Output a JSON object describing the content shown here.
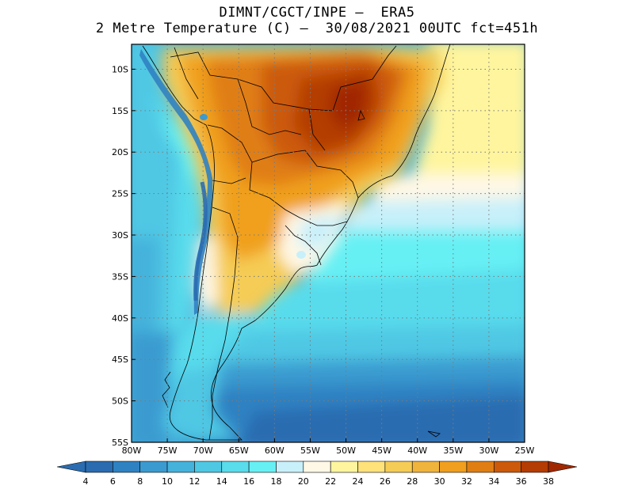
{
  "title": {
    "line1": "DIMNT/CGCT/INPE –  ERA5",
    "line2": "2 Metre Temperature (C) –  30/08/2021 00UTC fct=451h"
  },
  "map": {
    "lon_range": [
      -80,
      -25
    ],
    "lat_range": [
      -55,
      -7
    ],
    "lon_ticks": [
      {
        "value": -80,
        "label": "80W"
      },
      {
        "value": -75,
        "label": "75W"
      },
      {
        "value": -70,
        "label": "70W"
      },
      {
        "value": -65,
        "label": "65W"
      },
      {
        "value": -60,
        "label": "60W"
      },
      {
        "value": -55,
        "label": "55W"
      },
      {
        "value": -50,
        "label": "50W"
      },
      {
        "value": -45,
        "label": "45W"
      },
      {
        "value": -40,
        "label": "40W"
      },
      {
        "value": -35,
        "label": "35W"
      },
      {
        "value": -30,
        "label": "30W"
      },
      {
        "value": -25,
        "label": "25W"
      }
    ],
    "lat_ticks": [
      {
        "value": -10,
        "label": "10S"
      },
      {
        "value": -15,
        "label": "15S"
      },
      {
        "value": -20,
        "label": "20S"
      },
      {
        "value": -25,
        "label": "25S"
      },
      {
        "value": -30,
        "label": "30S"
      },
      {
        "value": -35,
        "label": "35S"
      },
      {
        "value": -40,
        "label": "40S"
      },
      {
        "value": -45,
        "label": "45S"
      },
      {
        "value": -50,
        "label": "50S"
      },
      {
        "value": -55,
        "label": "55S"
      }
    ],
    "gridlines": true
  },
  "colorbar": {
    "labels": [
      "4",
      "6",
      "8",
      "10",
      "12",
      "14",
      "16",
      "18",
      "20",
      "22",
      "24",
      "26",
      "28",
      "30",
      "32",
      "34",
      "36",
      "38"
    ],
    "colors": [
      "#2b6cb0",
      "#2f82c2",
      "#3b9bd0",
      "#45b2dc",
      "#4fc8e4",
      "#59dcec",
      "#66f0f4",
      "#c8f0fa",
      "#fff8e6",
      "#fff59e",
      "#ffe27a",
      "#f5cc55",
      "#f0b43c",
      "#f0a01e",
      "#e07e14",
      "#cc5a0a",
      "#b43c05",
      "#a02800"
    ],
    "low_color": "#2b6cb0",
    "high_color": "#a02800"
  }
}
